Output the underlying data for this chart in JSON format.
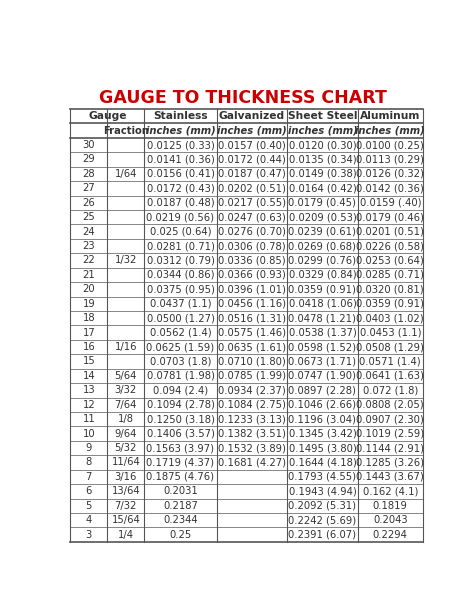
{
  "title": "GAUGE TO THICKNESS CHART",
  "title_color": "#CC0000",
  "rows": [
    [
      "30",
      "",
      "0.0125 (0.33)",
      "0.0157 (0.40)",
      "0.0120 (0.30)",
      "0.0100 (0.25)"
    ],
    [
      "29",
      "",
      "0.0141 (0.36)",
      "0.0172 (0.44)",
      "0.0135 (0.34)",
      "0.0113 (0.29)"
    ],
    [
      "28",
      "1/64",
      "0.0156 (0.41)",
      "0.0187 (0.47)",
      "0.0149 (0.38)",
      "0.0126 (0.32)"
    ],
    [
      "27",
      "",
      "0.0172 (0.43)",
      "0.0202 (0.51)",
      "0.0164 (0.42)",
      "0.0142 (0.36)"
    ],
    [
      "26",
      "",
      "0.0187 (0.48)",
      "0.0217 (0.55)",
      "0.0179 (0.45)",
      "0.0159 (.40)"
    ],
    [
      "25",
      "",
      "0.0219 (0.56)",
      "0.0247 (0.63)",
      "0.0209 (0.53)",
      "0.0179 (0.46)"
    ],
    [
      "24",
      "",
      "0.025 (0.64)",
      "0.0276 (0.70)",
      "0.0239 (0.61)",
      "0.0201 (0.51)"
    ],
    [
      "23",
      "",
      "0.0281 (0.71)",
      "0.0306 (0.78)",
      "0.0269 (0.68)",
      "0.0226 (0.58)"
    ],
    [
      "22",
      "1/32",
      "0.0312 (0.79)",
      "0.0336 (0.85)",
      "0.0299 (0.76)",
      "0.0253 (0.64)"
    ],
    [
      "21",
      "",
      "0.0344 (0.86)",
      "0.0366 (0.93)",
      "0.0329 (0.84)",
      "0.0285 (0.71)"
    ],
    [
      "20",
      "",
      "0.0375 (0.95)",
      "0.0396 (1.01)",
      "0.0359 (0.91)",
      "0.0320 (0.81)"
    ],
    [
      "19",
      "",
      "0.0437 (1.1)",
      "0.0456 (1.16)",
      "0.0418 (1.06)",
      "0.0359 (0.91)"
    ],
    [
      "18",
      "",
      "0.0500 (1.27)",
      "0.0516 (1.31)",
      "0.0478 (1.21)",
      "0.0403 (1.02)"
    ],
    [
      "17",
      "",
      "0.0562 (1.4)",
      "0.0575 (1.46)",
      "0.0538 (1.37)",
      "0.0453 (1.1)"
    ],
    [
      "16",
      "1/16",
      "0.0625 (1.59)",
      "0.0635 (1.61)",
      "0.0598 (1.52)",
      "0.0508 (1.29)"
    ],
    [
      "15",
      "",
      "0.0703 (1.8)",
      "0.0710 (1.80)",
      "0.0673 (1.71)",
      "0.0571 (1.4)"
    ],
    [
      "14",
      "5/64",
      "0.0781 (1.98)",
      "0.0785 (1.99)",
      "0.0747 (1.90)",
      "0.0641 (1.63)"
    ],
    [
      "13",
      "3/32",
      "0.094 (2.4)",
      "0.0934 (2.37)",
      "0.0897 (2.28)",
      "0.072 (1.8)"
    ],
    [
      "12",
      "7/64",
      "0.1094 (2.78)",
      "0.1084 (2.75)",
      "0.1046 (2.66)",
      "0.0808 (2.05)"
    ],
    [
      "11",
      "1/8",
      "0.1250 (3.18)",
      "0.1233 (3.13)",
      "0.1196 (3.04)",
      "0.0907 (2.30)"
    ],
    [
      "10",
      "9/64",
      "0.1406 (3.57)",
      "0.1382 (3.51)",
      "0.1345 (3.42)",
      "0.1019 (2.59)"
    ],
    [
      "9",
      "5/32",
      "0.1563 (3.97)",
      "0.1532 (3.89)",
      "0.1495 (3.80)",
      "0.1144 (2.91)"
    ],
    [
      "8",
      "11/64",
      "0.1719 (4.37)",
      "0.1681 (4.27)",
      "0.1644 (4.18)",
      "0.1285 (3.26)"
    ],
    [
      "7",
      "3/16",
      "0.1875 (4.76)",
      "",
      "0.1793 (4.55)",
      "0.1443 (3.67)"
    ],
    [
      "6",
      "13/64",
      "0.2031",
      "",
      "0.1943 (4.94)",
      "0.162 (4.1)"
    ],
    [
      "5",
      "7/32",
      "0.2187",
      "",
      "0.2092 (5.31)",
      "0.1819"
    ],
    [
      "4",
      "15/64",
      "0.2344",
      "",
      "0.2242 (5.69)",
      "0.2043"
    ],
    [
      "3",
      "1/4",
      "0.25",
      "",
      "0.2391 (6.07)",
      "0.2294"
    ]
  ],
  "bg_color": "#ffffff",
  "border_color": "#555555",
  "text_color": "#333333",
  "font_size": 7.2
}
